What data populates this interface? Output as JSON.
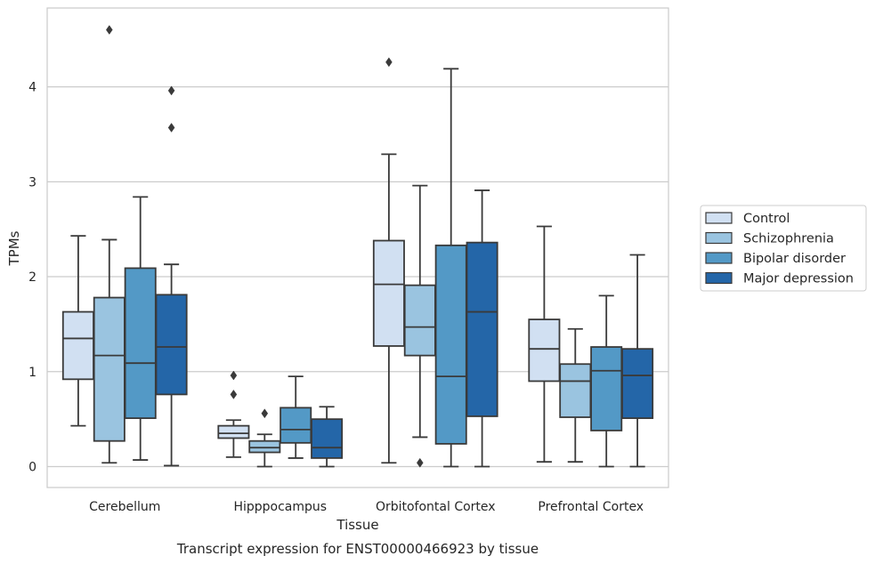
{
  "chart_data": {
    "type": "boxplot",
    "title": "",
    "xlabel": "Tissue",
    "ylabel": "TPMs",
    "caption": "Transcript expression for ENST00000466923 by tissue",
    "ylim": [
      -0.22,
      4.83
    ],
    "yticks": [
      0,
      1,
      2,
      3,
      4
    ],
    "grid": true,
    "legend_position": "right",
    "categories": [
      "Cerebellum",
      "Hipppocampus",
      "Orbitofontal Cortex",
      "Prefrontal Cortex"
    ],
    "series": [
      {
        "name": "Control",
        "color": "#d1e0f2",
        "boxes": [
          {
            "whisker_low": 0.43,
            "q1": 0.92,
            "median": 1.35,
            "q3": 1.63,
            "whisker_high": 2.43,
            "outliers": []
          },
          {
            "whisker_low": 0.1,
            "q1": 0.3,
            "median": 0.35,
            "q3": 0.43,
            "whisker_high": 0.49,
            "outliers": [
              0.96,
              0.76
            ]
          },
          {
            "whisker_low": 0.04,
            "q1": 1.27,
            "median": 1.92,
            "q3": 2.38,
            "whisker_high": 3.29,
            "outliers": [
              4.26
            ]
          },
          {
            "whisker_low": 0.05,
            "q1": 0.9,
            "median": 1.24,
            "q3": 1.55,
            "whisker_high": 2.53,
            "outliers": []
          }
        ]
      },
      {
        "name": "Schizophrenia",
        "color": "#9ac4e0",
        "boxes": [
          {
            "whisker_low": 0.04,
            "q1": 0.27,
            "median": 1.17,
            "q3": 1.78,
            "whisker_high": 2.39,
            "outliers": [
              4.6
            ]
          },
          {
            "whisker_low": 0.0,
            "q1": 0.15,
            "median": 0.2,
            "q3": 0.27,
            "whisker_high": 0.34,
            "outliers": [
              0.56
            ]
          },
          {
            "whisker_low": 0.31,
            "q1": 1.17,
            "median": 1.47,
            "q3": 1.91,
            "whisker_high": 2.96,
            "outliers": [
              0.04
            ]
          },
          {
            "whisker_low": 0.05,
            "q1": 0.52,
            "median": 0.9,
            "q3": 1.08,
            "whisker_high": 1.45,
            "outliers": []
          }
        ]
      },
      {
        "name": "Bipolar disorder",
        "color": "#5399c6",
        "boxes": [
          {
            "whisker_low": 0.07,
            "q1": 0.51,
            "median": 1.09,
            "q3": 2.09,
            "whisker_high": 2.84,
            "outliers": []
          },
          {
            "whisker_low": 0.09,
            "q1": 0.25,
            "median": 0.39,
            "q3": 0.62,
            "whisker_high": 0.95,
            "outliers": []
          },
          {
            "whisker_low": 0.0,
            "q1": 0.24,
            "median": 0.95,
            "q3": 2.33,
            "whisker_high": 4.19,
            "outliers": []
          },
          {
            "whisker_low": 0.0,
            "q1": 0.38,
            "median": 1.01,
            "q3": 1.26,
            "whisker_high": 1.8,
            "outliers": []
          }
        ]
      },
      {
        "name": "Major depression",
        "color": "#2466a8",
        "boxes": [
          {
            "whisker_low": 0.01,
            "q1": 0.76,
            "median": 1.26,
            "q3": 1.81,
            "whisker_high": 2.13,
            "outliers": [
              3.96,
              3.57
            ]
          },
          {
            "whisker_low": 0.0,
            "q1": 0.09,
            "median": 0.2,
            "q3": 0.5,
            "whisker_high": 0.63,
            "outliers": []
          },
          {
            "whisker_low": 0.0,
            "q1": 0.53,
            "median": 1.63,
            "q3": 2.36,
            "whisker_high": 2.91,
            "outliers": []
          },
          {
            "whisker_low": 0.0,
            "q1": 0.51,
            "median": 0.96,
            "q3": 1.24,
            "whisker_high": 2.23,
            "outliers": []
          }
        ]
      }
    ]
  }
}
